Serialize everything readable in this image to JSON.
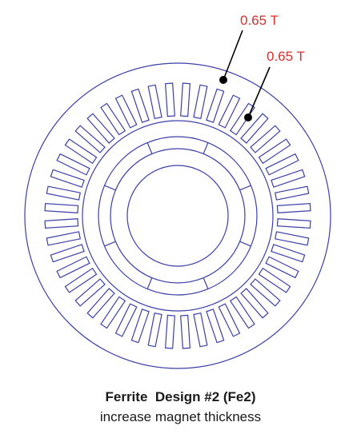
{
  "colors": {
    "outline": "#3b3fa8",
    "annotation_text": "#d9302c",
    "leader_line": "#000000",
    "caption_text": "#1a1a1a"
  },
  "motor": {
    "slot_count": 48,
    "pole_count": 4
  },
  "annotations": [
    {
      "label": "0.65 T",
      "target": "stator-back-iron"
    },
    {
      "label": "0.65 T",
      "target": "stator-tooth"
    }
  ],
  "caption": {
    "title": "Ferrite  Design #2 (Fe2)",
    "subtitle": "increase magnet thickness"
  }
}
